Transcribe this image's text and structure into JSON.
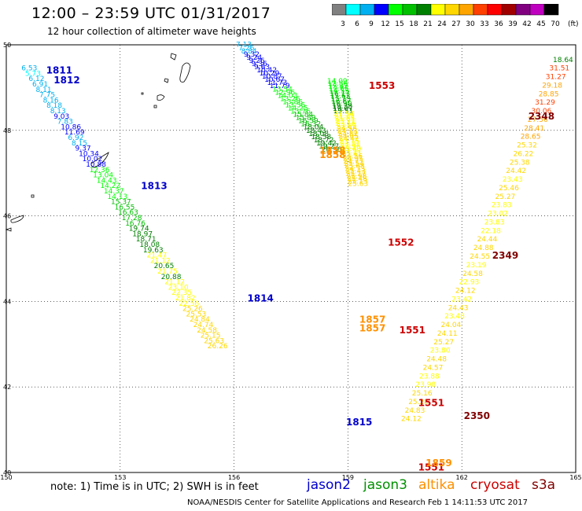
{
  "header": {
    "title": "12:00 – 23:59 UTC 01/31/2017",
    "subtitle": "12 hour collection of altimeter wave heights"
  },
  "legend": {
    "unit": "(ft)",
    "bins": [
      {
        "label": "3",
        "color": "#808080"
      },
      {
        "label": "6",
        "color": "#00ffff"
      },
      {
        "label": "9",
        "color": "#00b0f0"
      },
      {
        "label": "12",
        "color": "#0000ff"
      },
      {
        "label": "15",
        "color": "#00ff00"
      },
      {
        "label": "18",
        "color": "#00c000"
      },
      {
        "label": "21",
        "color": "#008000"
      },
      {
        "label": "24",
        "color": "#ffff00"
      },
      {
        "label": "27",
        "color": "#ffd700"
      },
      {
        "label": "30",
        "color": "#ffa500"
      },
      {
        "label": "33",
        "color": "#ff4000"
      },
      {
        "label": "36",
        "color": "#ff0000"
      },
      {
        "label": "39",
        "color": "#a00000"
      },
      {
        "label": "42",
        "color": "#800080"
      },
      {
        "label": "45",
        "color": "#c000c0"
      },
      {
        "label": "70",
        "color": "#000000"
      }
    ]
  },
  "axes": {
    "lon_ticks": [
      "150",
      "153",
      "156",
      "159",
      "162",
      "165"
    ],
    "lat_ticks": [
      "50",
      "48",
      "46",
      "44",
      "42",
      "40"
    ]
  },
  "footer": {
    "note": "note:  1) Time is in UTC;  2) SWH is in feet",
    "credit": "NOAA/NESDIS Center for Satellite Applications and Research     Feb  1 14:11:53 UTC 2017",
    "missions": [
      {
        "name": "jason2",
        "color": "#0000cc"
      },
      {
        "name": "jason3",
        "color": "#009000"
      },
      {
        "name": "altika",
        "color": "#ff9000"
      },
      {
        "name": "cryosat",
        "color": "#cc0000"
      },
      {
        "name": "s3a",
        "color": "#800000"
      }
    ]
  },
  "map": {
    "lon_range": [
      150,
      165
    ],
    "lat_range": [
      40,
      50
    ],
    "time_labels": [
      {
        "text": "1811",
        "lon": 151.05,
        "lat": 49.33,
        "color": "#0000cc"
      },
      {
        "text": "1812",
        "lon": 151.25,
        "lat": 49.1,
        "color": "#0000cc"
      },
      {
        "text": "1813",
        "lon": 153.55,
        "lat": 46.63,
        "color": "#0000cc"
      },
      {
        "text": "1814",
        "lon": 156.35,
        "lat": 44.0,
        "color": "#0000cc"
      },
      {
        "text": "1815",
        "lon": 158.95,
        "lat": 41.1,
        "color": "#0000cc"
      },
      {
        "text": "1553",
        "lon": 159.55,
        "lat": 48.97,
        "color": "#cc0000"
      },
      {
        "text": "1552",
        "lon": 160.05,
        "lat": 45.3,
        "color": "#cc0000"
      },
      {
        "text": "1551",
        "lon": 160.35,
        "lat": 43.25,
        "color": "#cc0000"
      },
      {
        "text": "1551",
        "lon": 160.85,
        "lat": 41.55,
        "color": "#cc0000"
      },
      {
        "text": "1551",
        "lon": 160.85,
        "lat": 40.05,
        "color": "#cc0000"
      },
      {
        "text": "1858",
        "lon": 158.25,
        "lat": 47.45,
        "color": "#ff9000"
      },
      {
        "text": "1858",
        "lon": 158.25,
        "lat": 47.35,
        "color": "#ff9000"
      },
      {
        "text": "1857",
        "lon": 159.3,
        "lat": 43.5,
        "color": "#ff9000"
      },
      {
        "text": "1857",
        "lon": 159.3,
        "lat": 43.3,
        "color": "#ff9000"
      },
      {
        "text": "1859",
        "lon": 161.05,
        "lat": 40.15,
        "color": "#ff9000"
      },
      {
        "text": "2348",
        "lon": 163.75,
        "lat": 48.25,
        "color": "#800000"
      },
      {
        "text": "2349",
        "lon": 162.8,
        "lat": 45.0,
        "color": "#800000"
      },
      {
        "text": "2350",
        "lon": 162.05,
        "lat": 41.25,
        "color": "#800000"
      }
    ],
    "tracks": [
      {
        "name": "jason2-west",
        "start": {
          "lon": 150.4,
          "lat": 49.4
        },
        "end": {
          "lon": 155.3,
          "lat": 42.9
        },
        "values": [
          "6.53",
          "5.73",
          "6.12",
          "6.91",
          "8.11",
          "7.75",
          "8.16",
          "8.18",
          "8.13",
          "9.03",
          "7.83",
          "10.86",
          "11.69",
          "6.92",
          "8.15",
          "9.37",
          "10.34",
          "10.02",
          "10.88",
          "12.36",
          "13.04",
          "14.43",
          "14.22",
          "14.37",
          "14.13",
          "15.37",
          "16.55",
          "16.63",
          "17.28",
          "16.76",
          "19.74",
          "18.97",
          "18.71",
          "18.08",
          "19.63",
          "21.47",
          "21.12",
          "20.65",
          "21.75",
          "20.88",
          "21.12",
          "23.10",
          "22.35",
          "21.82",
          "22.56",
          "25.26",
          "25.53",
          "24.84",
          "24.74",
          "24.58",
          "25.15",
          "25.63",
          "26.26"
        ]
      },
      {
        "name": "jason2-east",
        "start": {
          "lon": 156.05,
          "lat": 49.95
        },
        "end": {
          "lon": 158.3,
          "lat": 47.5
        },
        "values": [
          "7.13",
          "7.26",
          "8.84",
          "9.32",
          "9.24",
          "9.26",
          "9.36",
          "9.63",
          "10.42",
          "10.29",
          "10.87",
          "10.67",
          "11.73",
          "11.79",
          "13.54",
          "12.96",
          "14.03",
          "13.26",
          "13.86",
          "13.56",
          "14.25",
          "13.76",
          "15.84",
          "15.89",
          "16.59",
          "16.32",
          "18.04",
          "18.43",
          "18.08",
          "18.58",
          "18.72",
          "19.42",
          "19.27",
          "20.56"
        ]
      },
      {
        "name": "jason3",
        "start": {
          "lon": 158.45,
          "lat": 49.1
        },
        "end": {
          "lon": 159.0,
          "lat": 46.7
        },
        "values": [
          "14.09",
          "12.86",
          "12.42",
          "12.65",
          "14.55",
          "16.17",
          "15.62",
          "15.13",
          "16.87",
          "16.90",
          "19.38",
          "19.07",
          "19.51",
          "21.54",
          "21.19",
          "21.85",
          "23.21",
          "23.16",
          "22.89",
          "24.56",
          "24.13",
          "24.82",
          "24.05",
          "24.42",
          "23.75",
          "23.31",
          "22.96",
          "23.40",
          "23.97",
          "23.41",
          "24.56",
          "24.91",
          "24.77",
          "25.54",
          "25.68",
          "24.73",
          "25.43",
          "25.17",
          "25.98",
          "25.48",
          "25.13",
          "25.63"
        ]
      },
      {
        "name": "altika",
        "start": {
          "lon": 164.4,
          "lat": 49.6
        },
        "end": {
          "lon": 160.4,
          "lat": 41.2
        },
        "values": [
          "18.64",
          "31.51",
          "31.27",
          "29.18",
          "28.85",
          "31.29",
          "30.06",
          "27.56",
          "28.41",
          "28.65",
          "25.32",
          "26.22",
          "25.38",
          "24.42",
          "23.43",
          "25.46",
          "25.27",
          "23.83",
          "23.02",
          "23.83",
          "22.18",
          "24.44",
          "24.88",
          "24.55",
          "23.19",
          "24.58",
          "22.93",
          "24.12",
          "23.42",
          "24.43",
          "23.48",
          "24.04",
          "24.11",
          "25.27",
          "23.80",
          "24.48",
          "24.57",
          "23.88",
          "23.98",
          "25.16",
          "25.28",
          "24.83",
          "24.12"
        ]
      }
    ]
  }
}
